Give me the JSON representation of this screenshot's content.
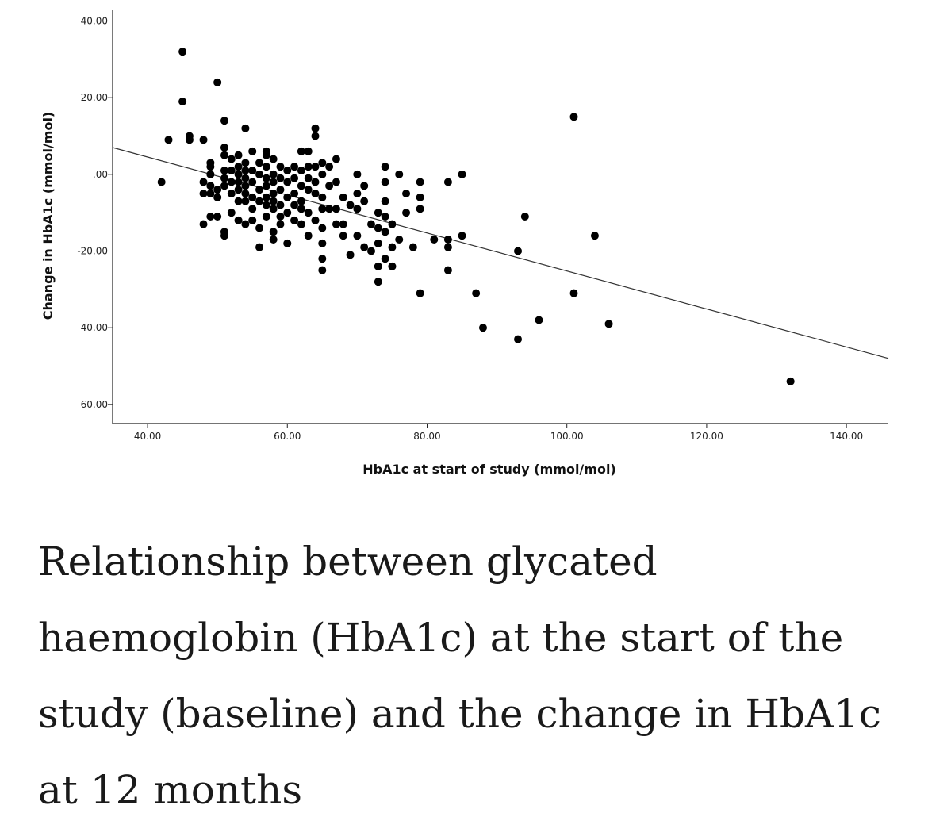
{
  "chart_data": {
    "type": "scatter",
    "xlabel": "HbA1c at start of study (mmol/mol)",
    "ylabel": "Change in HbA1c (mmol/mol)",
    "xlim": [
      35,
      146
    ],
    "ylim": [
      -65,
      43
    ],
    "x_ticks": [
      40,
      60,
      80,
      100,
      120,
      140
    ],
    "x_tick_labels": [
      "40.00",
      "60.00",
      "80.00",
      "100.00",
      "120.00",
      "140.00"
    ],
    "y_ticks": [
      40,
      20,
      0,
      -20,
      -40,
      -60
    ],
    "y_tick_labels": [
      "40.00",
      "20.00",
      ".00",
      "-20.00",
      "-40.00",
      "-60.00"
    ],
    "grid": false,
    "fit_line": {
      "x": [
        35,
        146
      ],
      "y": [
        7,
        -48
      ]
    },
    "points": [
      [
        42,
        -2
      ],
      [
        43,
        9
      ],
      [
        45,
        32
      ],
      [
        45,
        19
      ],
      [
        46,
        9
      ],
      [
        46,
        10
      ],
      [
        48,
        9
      ],
      [
        48,
        -2
      ],
      [
        48,
        -5
      ],
      [
        48,
        -13
      ],
      [
        49,
        -3
      ],
      [
        49,
        -5
      ],
      [
        49,
        -11
      ],
      [
        49,
        0
      ],
      [
        49,
        2
      ],
      [
        49,
        3
      ],
      [
        50,
        24
      ],
      [
        50,
        -4
      ],
      [
        50,
        -6
      ],
      [
        50,
        -11
      ],
      [
        51,
        14
      ],
      [
        51,
        7
      ],
      [
        51,
        5
      ],
      [
        51,
        1
      ],
      [
        51,
        -1
      ],
      [
        51,
        -3
      ],
      [
        51,
        -15
      ],
      [
        51,
        -16
      ],
      [
        52,
        4
      ],
      [
        52,
        1
      ],
      [
        52,
        -2
      ],
      [
        52,
        -5
      ],
      [
        52,
        -10
      ],
      [
        53,
        5
      ],
      [
        53,
        2
      ],
      [
        53,
        0
      ],
      [
        53,
        -2
      ],
      [
        53,
        -4
      ],
      [
        53,
        -7
      ],
      [
        53,
        -12
      ],
      [
        54,
        3
      ],
      [
        54,
        1
      ],
      [
        54,
        -1
      ],
      [
        54,
        -3
      ],
      [
        54,
        -5
      ],
      [
        54,
        12
      ],
      [
        54,
        -7
      ],
      [
        54,
        -13
      ],
      [
        55,
        6
      ],
      [
        55,
        1
      ],
      [
        55,
        -2
      ],
      [
        55,
        -6
      ],
      [
        55,
        -9
      ],
      [
        55,
        -12
      ],
      [
        56,
        3
      ],
      [
        56,
        0
      ],
      [
        56,
        -4
      ],
      [
        56,
        -7
      ],
      [
        56,
        -14
      ],
      [
        56,
        -19
      ],
      [
        57,
        6
      ],
      [
        57,
        5
      ],
      [
        57,
        2
      ],
      [
        57,
        -1
      ],
      [
        57,
        -3
      ],
      [
        57,
        -6
      ],
      [
        57,
        -8
      ],
      [
        57,
        -11
      ],
      [
        58,
        4
      ],
      [
        58,
        0
      ],
      [
        58,
        -2
      ],
      [
        58,
        -5
      ],
      [
        58,
        -7
      ],
      [
        58,
        -9
      ],
      [
        58,
        -15
      ],
      [
        58,
        -17
      ],
      [
        59,
        2
      ],
      [
        59,
        -1
      ],
      [
        59,
        -4
      ],
      [
        59,
        -8
      ],
      [
        59,
        -11
      ],
      [
        59,
        -13
      ],
      [
        60,
        1
      ],
      [
        60,
        -2
      ],
      [
        60,
        -6
      ],
      [
        60,
        -10
      ],
      [
        60,
        -18
      ],
      [
        61,
        2
      ],
      [
        61,
        -1
      ],
      [
        61,
        -5
      ],
      [
        61,
        -8
      ],
      [
        61,
        -12
      ],
      [
        62,
        6
      ],
      [
        62,
        1
      ],
      [
        62,
        -3
      ],
      [
        62,
        -7
      ],
      [
        62,
        -9
      ],
      [
        62,
        -13
      ],
      [
        63,
        6
      ],
      [
        63,
        2
      ],
      [
        63,
        -1
      ],
      [
        63,
        -4
      ],
      [
        63,
        -10
      ],
      [
        63,
        -16
      ],
      [
        64,
        12
      ],
      [
        64,
        10
      ],
      [
        64,
        2
      ],
      [
        64,
        -2
      ],
      [
        64,
        -5
      ],
      [
        64,
        -12
      ],
      [
        65,
        3
      ],
      [
        65,
        0
      ],
      [
        65,
        -6
      ],
      [
        65,
        -9
      ],
      [
        65,
        -14
      ],
      [
        65,
        -18
      ],
      [
        65,
        -22
      ],
      [
        65,
        -25
      ],
      [
        66,
        2
      ],
      [
        66,
        -3
      ],
      [
        66,
        -9
      ],
      [
        67,
        4
      ],
      [
        67,
        -2
      ],
      [
        67,
        -9
      ],
      [
        67,
        -13
      ],
      [
        68,
        -6
      ],
      [
        68,
        -13
      ],
      [
        68,
        -16
      ],
      [
        69,
        -8
      ],
      [
        69,
        -21
      ],
      [
        70,
        0
      ],
      [
        70,
        -5
      ],
      [
        70,
        -9
      ],
      [
        70,
        -16
      ],
      [
        71,
        -3
      ],
      [
        71,
        -7
      ],
      [
        71,
        -19
      ],
      [
        72,
        -13
      ],
      [
        72,
        -20
      ],
      [
        73,
        -10
      ],
      [
        73,
        -14
      ],
      [
        73,
        -18
      ],
      [
        73,
        -28
      ],
      [
        73,
        -24
      ],
      [
        74,
        2
      ],
      [
        74,
        -2
      ],
      [
        74,
        -7
      ],
      [
        74,
        -11
      ],
      [
        74,
        -15
      ],
      [
        74,
        -22
      ],
      [
        75,
        -13
      ],
      [
        75,
        -19
      ],
      [
        75,
        -24
      ],
      [
        76,
        0
      ],
      [
        76,
        -17
      ],
      [
        77,
        -5
      ],
      [
        77,
        -10
      ],
      [
        78,
        -19
      ],
      [
        79,
        -2
      ],
      [
        79,
        -6
      ],
      [
        79,
        -9
      ],
      [
        79,
        -31
      ],
      [
        81,
        -17
      ],
      [
        83,
        -2
      ],
      [
        83,
        -17
      ],
      [
        83,
        -19
      ],
      [
        83,
        -25
      ],
      [
        85,
        0
      ],
      [
        85,
        -16
      ],
      [
        87,
        -31
      ],
      [
        88,
        -40
      ],
      [
        93,
        -43
      ],
      [
        93,
        -20
      ],
      [
        94,
        -11
      ],
      [
        96,
        -38
      ],
      [
        101,
        15
      ],
      [
        101,
        -31
      ],
      [
        104,
        -16
      ],
      [
        106,
        -39
      ],
      [
        132,
        -54
      ]
    ]
  },
  "caption": "Relationship between glycated haemoglobin (HbA1c) at the start of the study (baseline) and the change in HbA1c at 12 months"
}
